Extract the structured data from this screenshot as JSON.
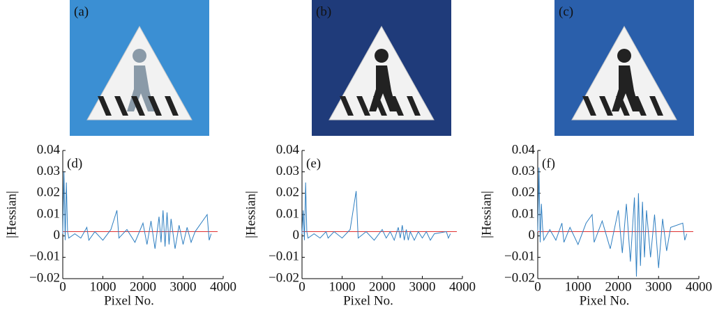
{
  "images": [
    {
      "label": "(a)",
      "background": "#3b8fd3",
      "figure": "#8a9aa8"
    },
    {
      "label": "(b)",
      "background": "#1f3b7a",
      "figure": "#222222"
    },
    {
      "label": "(c)",
      "background": "#2a5fab",
      "figure": "#222222"
    }
  ],
  "chart_data": [
    {
      "type": "line",
      "panel_label": "(d)",
      "xlabel": "Pixel No.",
      "ylabel": "|Hessian|",
      "x": [
        0,
        30,
        60,
        90,
        120,
        150,
        300,
        450,
        600,
        650,
        800,
        1000,
        1200,
        1350,
        1400,
        1600,
        1800,
        2000,
        2100,
        2200,
        2300,
        2400,
        2450,
        2500,
        2550,
        2600,
        2650,
        2700,
        2800,
        2900,
        3000,
        3100,
        3200,
        3300,
        3600,
        3650,
        3700
      ],
      "series": [
        {
          "color": "#2f7fc1",
          "values": [
            0.001,
            0.03,
            -0.002,
            0.025,
            0.002,
            -0.001,
            0.001,
            -0.001,
            0.004,
            -0.002,
            0.002,
            -0.002,
            0.003,
            0.012,
            -0.001,
            0.003,
            -0.003,
            0.006,
            -0.004,
            0.007,
            -0.006,
            0.009,
            -0.003,
            0.012,
            -0.005,
            0.011,
            -0.004,
            0.008,
            -0.006,
            0.005,
            -0.004,
            0.004,
            -0.003,
            0.002,
            0.01,
            -0.002,
            0.001
          ]
        }
      ],
      "reference_line": {
        "value": 0.002,
        "color": "#e03030"
      },
      "xlim": [
        0,
        4000
      ],
      "xticks": [
        0,
        1000,
        2000,
        3000,
        4000
      ],
      "ylim": [
        -0.02,
        0.04
      ],
      "yticks": [
        {
          "value": -0.02,
          "label": "−0.02"
        },
        {
          "value": -0.01,
          "label": "−0.01"
        },
        0,
        0.01,
        0.02,
        0.03,
        0.04
      ]
    },
    {
      "type": "line",
      "panel_label": "(e)",
      "xlabel": "Pixel No.",
      "ylabel": "|Hessian|",
      "x": [
        0,
        30,
        60,
        90,
        120,
        150,
        300,
        450,
        600,
        650,
        800,
        1000,
        1200,
        1350,
        1400,
        1600,
        1800,
        2000,
        2100,
        2200,
        2300,
        2400,
        2450,
        2500,
        2550,
        2600,
        2650,
        2700,
        2800,
        2900,
        3000,
        3100,
        3200,
        3300,
        3600,
        3650,
        3700
      ],
      "series": [
        {
          "color": "#2f7fc1",
          "values": [
            0.001,
            0.012,
            -0.002,
            0.025,
            0.002,
            -0.001,
            0.001,
            -0.001,
            0.002,
            -0.001,
            0.002,
            -0.001,
            0.003,
            0.021,
            -0.001,
            0.002,
            -0.002,
            0.003,
            -0.001,
            0.002,
            -0.002,
            0.004,
            -0.001,
            0.005,
            -0.002,
            0.003,
            -0.002,
            0.002,
            -0.002,
            0.002,
            -0.001,
            0.002,
            -0.002,
            0.001,
            0.002,
            -0.001,
            0.001
          ]
        }
      ],
      "reference_line": {
        "value": 0.002,
        "color": "#e03030"
      },
      "xlim": [
        0,
        4000
      ],
      "xticks": [
        0,
        1000,
        2000,
        3000,
        4000
      ],
      "ylim": [
        -0.02,
        0.04
      ],
      "yticks": [
        {
          "value": -0.02,
          "label": "−0.02"
        },
        {
          "value": -0.01,
          "label": "−0.01"
        },
        0,
        0.01,
        0.02,
        0.03,
        0.04
      ]
    },
    {
      "type": "line",
      "panel_label": "(f)",
      "xlabel": "Pixel No.",
      "ylabel": "|Hessian|",
      "x": [
        0,
        30,
        60,
        90,
        120,
        150,
        300,
        450,
        600,
        650,
        800,
        1000,
        1200,
        1350,
        1400,
        1600,
        1800,
        2000,
        2100,
        2200,
        2300,
        2400,
        2450,
        2500,
        2550,
        2600,
        2650,
        2700,
        2800,
        2900,
        3000,
        3100,
        3200,
        3300,
        3600,
        3650,
        3700
      ],
      "series": [
        {
          "color": "#2f7fc1",
          "values": [
            0.002,
            0.032,
            -0.003,
            0.015,
            0.004,
            -0.002,
            0.003,
            -0.002,
            0.006,
            -0.003,
            0.004,
            -0.004,
            0.006,
            0.01,
            -0.003,
            0.007,
            -0.006,
            0.012,
            -0.008,
            0.015,
            -0.012,
            0.018,
            -0.019,
            0.02,
            -0.014,
            0.016,
            -0.01,
            0.012,
            -0.01,
            0.01,
            -0.015,
            0.008,
            -0.007,
            0.004,
            0.006,
            -0.002,
            0.001
          ]
        }
      ],
      "reference_line": {
        "value": 0.002,
        "color": "#e03030"
      },
      "xlim": [
        0,
        4000
      ],
      "xticks": [
        0,
        1000,
        2000,
        3000,
        4000
      ],
      "ylim": [
        -0.02,
        0.04
      ],
      "yticks": [
        {
          "value": -0.02,
          "label": "−0.02"
        },
        {
          "value": -0.01,
          "label": "−0.01"
        },
        0,
        0.01,
        0.02,
        0.03,
        0.04
      ]
    }
  ]
}
